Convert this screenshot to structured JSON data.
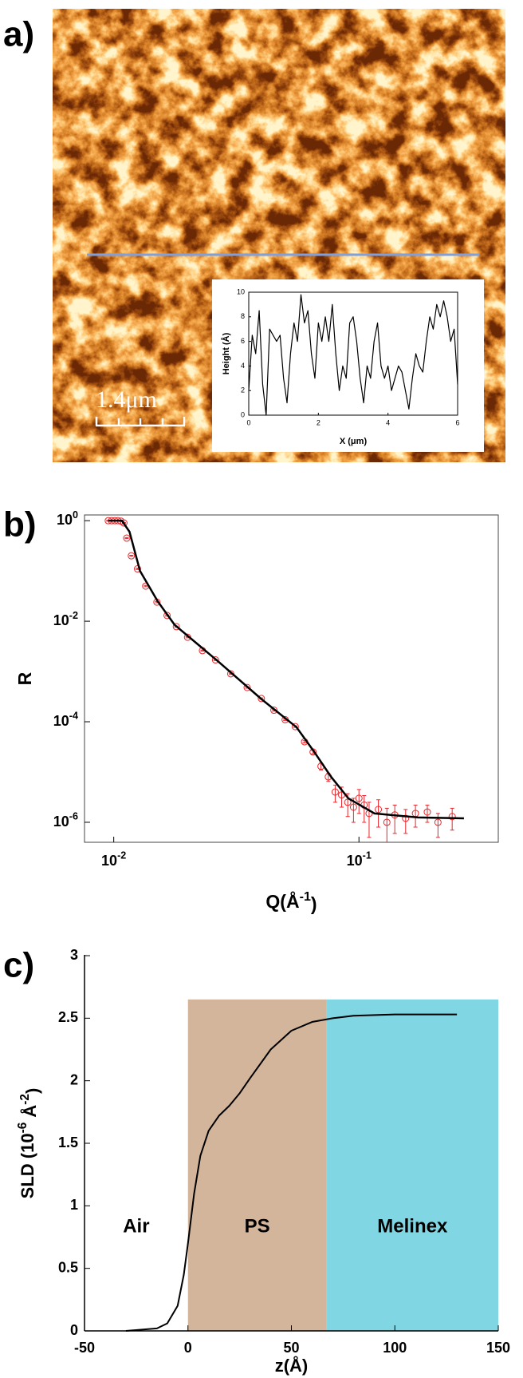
{
  "panels": [
    "a)",
    "b)",
    "c)"
  ],
  "image": {
    "scale_bar": "1.4μm"
  },
  "chart_data": [
    {
      "type": "line",
      "xlabel": "X (μm)",
      "ylabel": "Height (Å)",
      "color": "#000000",
      "x": [
        0,
        0.1,
        0.2,
        0.3,
        0.4,
        0.5,
        0.6,
        0.7,
        0.8,
        0.9,
        1,
        1.1,
        1.2,
        1.3,
        1.4,
        1.5,
        1.6,
        1.7,
        1.8,
        1.9,
        2,
        2.1,
        2.2,
        2.3,
        2.4,
        2.5,
        2.6,
        2.7,
        2.8,
        2.9,
        3,
        3.1,
        3.2,
        3.3,
        3.4,
        3.5,
        3.6,
        3.7,
        3.8,
        3.9,
        4,
        4.1,
        4.2,
        4.3,
        4.4,
        4.5,
        4.6,
        4.7,
        4.8,
        4.9,
        5,
        5.1,
        5.2,
        5.3,
        5.4,
        5.5,
        5.6,
        5.7,
        5.8,
        5.9,
        6
      ],
      "values": [
        2,
        6.5,
        5,
        8.5,
        2.5,
        0,
        7,
        6.5,
        6,
        6.5,
        3,
        1,
        5,
        7.5,
        6,
        9.8,
        7.5,
        8.5,
        5,
        3,
        7.5,
        6,
        8,
        6,
        9,
        5,
        2,
        4,
        3,
        7.5,
        8,
        6,
        3,
        1,
        4,
        3,
        6,
        7.5,
        4,
        3,
        4,
        2,
        3,
        4,
        3.5,
        2,
        0.5,
        3,
        5,
        4,
        3.5,
        6,
        8,
        7,
        9,
        8,
        9.3,
        8,
        6,
        7,
        2.5
      ],
      "xlim": [
        0,
        6
      ],
      "ylim": [
        0,
        10
      ],
      "xticks": [
        0,
        2,
        4,
        6
      ],
      "yticks": [
        0,
        2,
        4,
        6,
        8,
        10
      ]
    },
    {
      "type": "scatter",
      "xscale": "log",
      "yscale": "log",
      "ylabel": "R",
      "xlabel": [
        "Q(Å",
        "-1",
        ")"
      ],
      "xlim": [
        0.0076,
        0.37
      ],
      "ylim": [
        4e-07,
        1.3
      ],
      "xticks": [
        {
          "value": 0.01,
          "label": "10",
          "exponent": "-2"
        },
        {
          "value": 0.1,
          "label": "10",
          "exponent": "-1"
        }
      ],
      "yticks": [
        {
          "value": 1,
          "label": "10",
          "exponent": "0"
        },
        {
          "value": 0.01,
          "label": "10",
          "exponent": "-2"
        },
        {
          "value": 0.0001,
          "label": "10",
          "exponent": "-4"
        },
        {
          "value": 1e-06,
          "label": "10",
          "exponent": "-6"
        }
      ],
      "series": [
        {
          "type": "points",
          "color": "#e8262b",
          "x": [
            0.0095,
            0.0098,
            0.0101,
            0.0104,
            0.0107,
            0.011,
            0.0113,
            0.0118,
            0.0125,
            0.0135,
            0.015,
            0.0165,
            0.018,
            0.02,
            0.023,
            0.026,
            0.03,
            0.035,
            0.04,
            0.045,
            0.05,
            0.055,
            0.06,
            0.065,
            0.07,
            0.075,
            0.08,
            0.085,
            0.09,
            0.095,
            0.1,
            0.105,
            0.11,
            0.12,
            0.13,
            0.14,
            0.155,
            0.17,
            0.19,
            0.21,
            0.24
          ],
          "values": [
            1,
            1,
            1,
            1,
            0.98,
            0.9,
            0.45,
            0.2,
            0.11,
            0.05,
            0.024,
            0.013,
            0.0078,
            0.0048,
            0.0026,
            0.0017,
            0.0009,
            0.00048,
            0.00029,
            0.00017,
            0.00011,
            8e-05,
            4e-05,
            2.5e-05,
            1.3e-05,
            8e-06,
            4e-06,
            3.5e-06,
            2.5e-06,
            2e-06,
            3e-06,
            2.2e-06,
            1.5e-06,
            1.8e-06,
            1e-06,
            1.4e-06,
            1.2e-06,
            1.5e-06,
            1.6e-06,
            1e-06,
            1.3e-06
          ],
          "errors": [
            0.02,
            0.02,
            0.02,
            0.02,
            0.02,
            0.02,
            0.01,
            0.005,
            0.003,
            0.0015,
            0.0007,
            0.0004,
            0.0002,
            0.00012,
            7e-05,
            4e-05,
            2.5e-05,
            1.5e-05,
            9e-06,
            6e-06,
            4e-06,
            3e-06,
            2e-06,
            2e-06,
            2e-06,
            1.5e-06,
            1.5e-06,
            1.5e-06,
            1.2e-06,
            1e-06,
            1.5e-06,
            1.2e-06,
            1e-06,
            1e-06,
            9e-07,
            8e-07,
            6e-07,
            7e-07,
            6e-07,
            5e-07,
            6e-07
          ]
        },
        {
          "type": "line",
          "color": "#000000",
          "x": [
            0.0095,
            0.0108,
            0.0116,
            0.0128,
            0.0151,
            0.0177,
            0.0266,
            0.0401,
            0.0556,
            0.0654,
            0.077,
            0.0905,
            0.1157,
            0.174,
            0.268
          ],
          "values": [
            1,
            1,
            0.6,
            0.1,
            0.025,
            0.0085,
            0.0016,
            0.00028,
            7.8e-05,
            2.6e-05,
            8e-06,
            3e-06,
            1.5e-06,
            1.25e-06,
            1.2e-06
          ]
        }
      ]
    },
    {
      "type": "line",
      "xlabel": "z(Å)",
      "ylabel": [
        "SLD (10",
        "-6",
        " Å",
        "-2",
        ")"
      ],
      "color": "#000000",
      "x": [
        -30,
        -15,
        -10,
        -5,
        -2,
        0,
        3,
        6,
        10,
        15,
        20,
        25,
        30,
        40,
        50,
        60,
        70,
        80,
        100,
        130
      ],
      "values": [
        0,
        0.02,
        0.06,
        0.2,
        0.45,
        0.7,
        1.1,
        1.4,
        1.6,
        1.72,
        1.8,
        1.9,
        2.02,
        2.25,
        2.4,
        2.47,
        2.5,
        2.52,
        2.53,
        2.53
      ],
      "xlim": [
        -50,
        150
      ],
      "ylim": [
        0,
        3
      ],
      "xticks": [
        -50,
        0,
        50,
        100,
        150
      ],
      "yticks": [
        0,
        0.5,
        1,
        1.5,
        2,
        2.5,
        3
      ],
      "regions": [
        {
          "name": "Air",
          "start": -50,
          "end": 0
        },
        {
          "name": "PS",
          "start": 0,
          "end": 67,
          "top": 2.65,
          "color": "#d3b59b"
        },
        {
          "name": "Melinex",
          "start": 67,
          "end": 150,
          "top": 2.65,
          "color": "#80d6e2"
        }
      ]
    }
  ]
}
